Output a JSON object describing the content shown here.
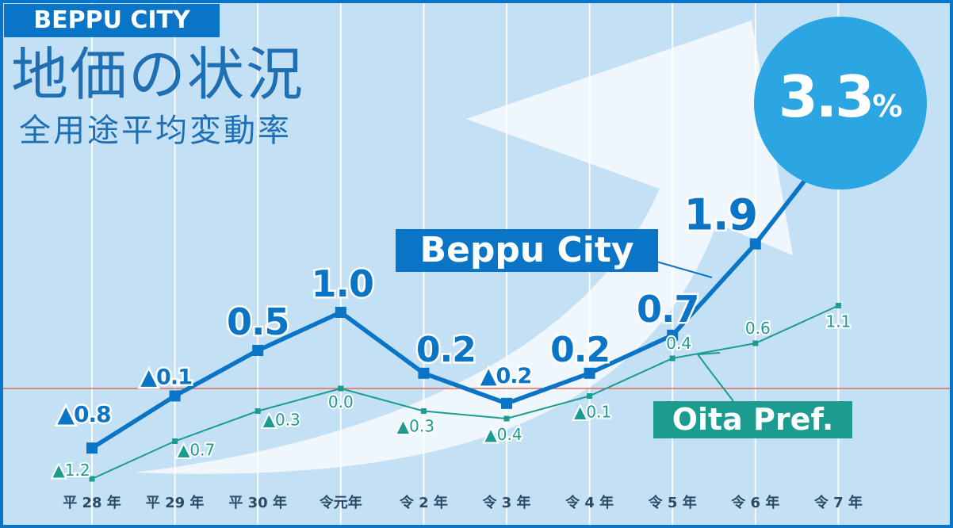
{
  "header": {
    "badge": "BEPPU CITY",
    "title": "地価の状況",
    "subtitle": "全用途平均変動率"
  },
  "highlight": {
    "value": "3.3",
    "unit": "%"
  },
  "colors": {
    "beppu": "#0a74c6",
    "oita": "#1c9c90",
    "background": "#c4e0f4",
    "border": "#0a74c6",
    "zero_line": "#e06b5f",
    "circle": "#2ba6e2",
    "arrow": "#ffffff"
  },
  "chart_data": {
    "type": "line",
    "categories": [
      "平 28 年",
      "平 29 年",
      "平 30 年",
      "令元年",
      "令 2 年",
      "令 3 年",
      "令 4 年",
      "令 5 年",
      "令 6 年",
      "令 7 年"
    ],
    "ylim": [
      -1.2,
      3.3
    ],
    "grid": "vertical",
    "series": [
      {
        "name": "Beppu City",
        "values": [
          -0.8,
          -0.1,
          0.5,
          1.0,
          0.2,
          -0.2,
          0.2,
          0.7,
          1.9,
          3.3
        ],
        "labels": [
          "▲0.8",
          "▲0.1",
          "0.5",
          "1.0",
          "0.2",
          "▲0.2",
          "0.2",
          "0.7",
          "1.9",
          ""
        ]
      },
      {
        "name": "Oita Pref.",
        "values": [
          -1.2,
          -0.7,
          -0.3,
          0.0,
          -0.3,
          -0.4,
          -0.1,
          0.4,
          0.6,
          1.1
        ],
        "labels": [
          "▲1.2",
          "▲0.7",
          "▲0.3",
          "0.0",
          "▲0.3",
          "▲0.4",
          "▲0.1",
          "0.4",
          "0.6",
          "1.1"
        ]
      }
    ]
  }
}
